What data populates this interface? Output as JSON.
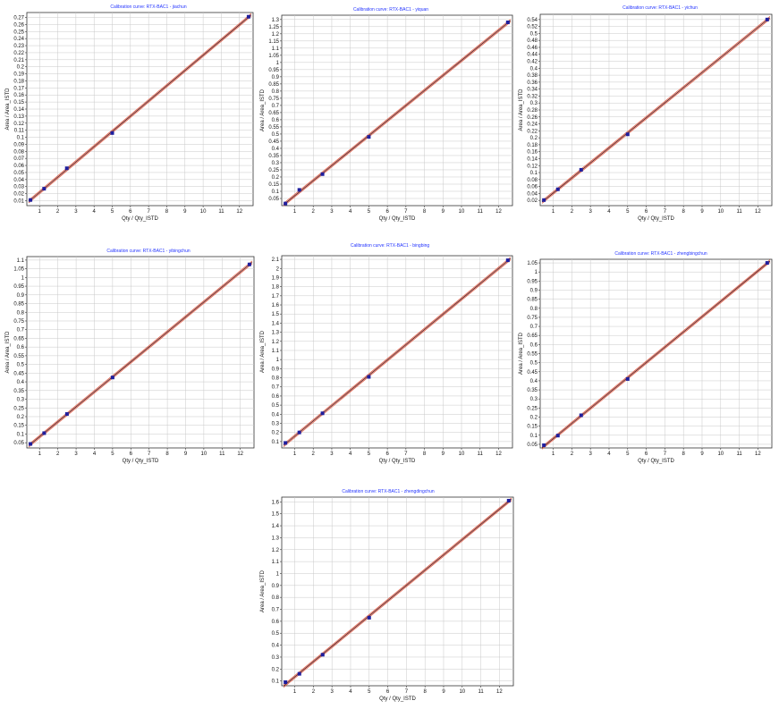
{
  "chart_data": [
    {
      "type": "scatter",
      "title": "Calibration curve: RTX-BAC1 - jiachun",
      "xlabel": "Qty / Qty_ISTD",
      "ylabel": "Area / Area_ISTD",
      "xticks": [
        1,
        2,
        3,
        4,
        5,
        6,
        7,
        8,
        9,
        10,
        11,
        12
      ],
      "yticks": [
        0.01,
        0.02,
        0.03,
        0.04,
        0.05,
        0.06,
        0.07,
        0.08,
        0.09,
        0.1,
        0.11,
        0.12,
        0.13,
        0.14,
        0.15,
        0.16,
        0.17,
        0.18,
        0.19,
        0.2,
        0.21,
        0.22,
        0.23,
        0.24,
        0.25,
        0.26,
        0.27
      ],
      "xlim": [
        0.3,
        12.75
      ],
      "ylim": [
        0.003,
        0.277
      ],
      "x": [
        0.5,
        1.25,
        2.5,
        5,
        12.5
      ],
      "y": [
        0.011,
        0.027,
        0.056,
        0.106,
        0.271
      ],
      "grid": true
    },
    {
      "type": "scatter",
      "title": "Calibration curve: RTX-BAC1 - yiquan",
      "xlabel": "Qty / Qty_ISTD",
      "ylabel": "Area / Area_ISTD",
      "xticks": [
        1,
        2,
        3,
        4,
        5,
        6,
        7,
        8,
        9,
        10,
        11,
        12
      ],
      "yticks": [
        0.05,
        0.1,
        0.15,
        0.2,
        0.25,
        0.3,
        0.35,
        0.4,
        0.45,
        0.5,
        0.55,
        0.6,
        0.65,
        0.7,
        0.75,
        0.8,
        0.85,
        0.9,
        0.95,
        1,
        1.05,
        1.1,
        1.15,
        1.2,
        1.25,
        1.3
      ],
      "xlim": [
        0.3,
        12.75
      ],
      "ylim": [
        0,
        1.33
      ],
      "x": [
        0.5,
        1.25,
        2.5,
        5,
        12.5
      ],
      "y": [
        0.015,
        0.11,
        0.22,
        0.48,
        1.28
      ],
      "grid": true
    },
    {
      "type": "scatter",
      "title": "Calibration curve: RTX-BAC1 - yichun",
      "xlabel": "Qty / Qty_ISTD",
      "ylabel": "Area / Area_ISTD",
      "xticks": [
        1,
        2,
        3,
        4,
        5,
        6,
        7,
        8,
        9,
        10,
        11,
        12
      ],
      "yticks": [
        0.02,
        0.04,
        0.06,
        0.08,
        0.1,
        0.12,
        0.14,
        0.16,
        0.18,
        0.2,
        0.22,
        0.24,
        0.26,
        0.28,
        0.3,
        0.32,
        0.34,
        0.36,
        0.38,
        0.4,
        0.42,
        0.44,
        0.46,
        0.48,
        0.5,
        0.52,
        0.54
      ],
      "xlim": [
        0.3,
        12.75
      ],
      "ylim": [
        0.005,
        0.555
      ],
      "x": [
        0.5,
        1.25,
        2.5,
        5,
        12.5
      ],
      "y": [
        0.021,
        0.052,
        0.108,
        0.21,
        0.54
      ],
      "grid": true
    },
    {
      "type": "scatter",
      "title": "Calibration curve: RTX-BAC1 - yibingchun",
      "xlabel": "Qty / Qty_ISTD",
      "ylabel": "Area / Area_ISTD",
      "xticks": [
        1,
        2,
        3,
        4,
        5,
        6,
        7,
        8,
        9,
        10,
        11,
        12
      ],
      "yticks": [
        0.05,
        0.1,
        0.15,
        0.2,
        0.25,
        0.3,
        0.35,
        0.4,
        0.45,
        0.5,
        0.55,
        0.6,
        0.65,
        0.7,
        0.75,
        0.8,
        0.85,
        0.9,
        0.95,
        1,
        1.05,
        1.1
      ],
      "xlim": [
        0.3,
        12.75
      ],
      "ylim": [
        0.02,
        1.12
      ],
      "x": [
        0.5,
        1.25,
        2.5,
        5,
        12.5
      ],
      "y": [
        0.043,
        0.105,
        0.215,
        0.425,
        1.075
      ],
      "grid": true
    },
    {
      "type": "scatter",
      "title": "Calibration curve: RTX-BAC1 - bingbing",
      "xlabel": "Qty / Qty_ISTD",
      "ylabel": "Area / Area_ISTD",
      "xticks": [
        1,
        2,
        3,
        4,
        5,
        6,
        7,
        8,
        9,
        10,
        11,
        12
      ],
      "yticks": [
        0.1,
        0.2,
        0.3,
        0.4,
        0.5,
        0.6,
        0.7,
        0.8,
        0.9,
        1,
        1.1,
        1.2,
        1.3,
        1.4,
        1.5,
        1.6,
        1.7,
        1.8,
        1.9,
        2,
        2.1
      ],
      "xlim": [
        0.3,
        12.75
      ],
      "ylim": [
        0.03,
        2.14
      ],
      "x": [
        0.5,
        1.25,
        2.5,
        5,
        12.5
      ],
      "y": [
        0.085,
        0.2,
        0.41,
        0.81,
        2.09
      ],
      "grid": true
    },
    {
      "type": "scatter",
      "title": "Calibration curve: RTX-BAC1 - zhengbingchun",
      "xlabel": "Qty / Qty_ISTD",
      "ylabel": "Area / Area_ISTD",
      "xticks": [
        1,
        2,
        3,
        4,
        5,
        6,
        7,
        8,
        9,
        10,
        11,
        12
      ],
      "yticks": [
        0.05,
        0.1,
        0.15,
        0.2,
        0.25,
        0.3,
        0.35,
        0.4,
        0.45,
        0.5,
        0.55,
        0.6,
        0.65,
        0.7,
        0.75,
        0.8,
        0.85,
        0.9,
        0.95,
        1,
        1.05
      ],
      "xlim": [
        0.3,
        12.75
      ],
      "ylim": [
        0.03,
        1.07
      ],
      "x": [
        0.5,
        1.25,
        2.5,
        5,
        12.5
      ],
      "y": [
        0.045,
        0.098,
        0.21,
        0.41,
        1.05
      ],
      "grid": true
    },
    {
      "type": "scatter",
      "title": "Calibration curve: RTX-BAC1 - zhengdingchun",
      "xlabel": "Qty / Qty_ISTD",
      "ylabel": "Area / Area_ISTD",
      "xticks": [
        1,
        2,
        3,
        4,
        5,
        6,
        7,
        8,
        9,
        10,
        11,
        12
      ],
      "yticks": [
        0.1,
        0.2,
        0.3,
        0.4,
        0.5,
        0.6,
        0.7,
        0.8,
        0.9,
        1,
        1.1,
        1.2,
        1.3,
        1.4,
        1.5,
        1.6
      ],
      "xlim": [
        0.3,
        12.75
      ],
      "ylim": [
        0.06,
        1.64
      ],
      "x": [
        0.5,
        1.25,
        2.5,
        5,
        12.5
      ],
      "y": [
        0.09,
        0.16,
        0.32,
        0.63,
        1.61
      ],
      "grid": true
    }
  ],
  "colors": {
    "point": "#1f1f9e",
    "fit_line": "#5a1a1a",
    "confidence_line": "#e0604a",
    "grid": "#c8c8c8",
    "title": "#2233ff"
  }
}
